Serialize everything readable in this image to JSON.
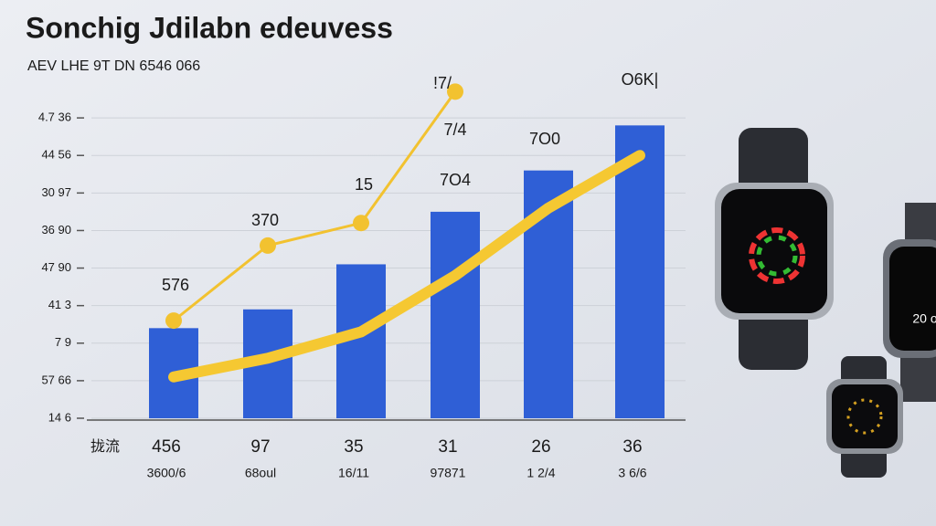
{
  "chart_data": {
    "type": "bar",
    "title": "Sonchig Jdilabn edeuvess",
    "subtitle": "AEV LHE 9T DN 6546 066",
    "x_label": "拢流",
    "categories": [
      "456",
      "97",
      "35",
      "31",
      "26",
      "36"
    ],
    "sublabels": [
      "3600/6",
      "68oul",
      "16/11",
      "97871",
      "1 2/4",
      "3 6/6"
    ],
    "ylim": [
      0,
      9
    ],
    "yticks": [
      {
        "value": 0,
        "label": "14 6"
      },
      {
        "value": 1,
        "label": "57 66"
      },
      {
        "value": 2,
        "label": "7 9"
      },
      {
        "value": 3,
        "label": "41 3"
      },
      {
        "value": 4,
        "label": "47 90"
      },
      {
        "value": 5,
        "label": "36 90"
      },
      {
        "value": 6,
        "label": "30 97"
      },
      {
        "value": 7,
        "label": "44 56"
      },
      {
        "value": 8,
        "label": "4.7 36"
      }
    ],
    "grid": true,
    "series": [
      {
        "type": "bar",
        "color": "#2f5fd6",
        "values": [
          2.4,
          2.9,
          4.1,
          5.5,
          6.6,
          7.8
        ]
      },
      {
        "type": "line",
        "color": "#f5c832",
        "width": 12,
        "values": [
          1.1,
          1.6,
          2.3,
          3.8,
          5.6,
          7.0
        ]
      },
      {
        "type": "line",
        "color": "#f2c230",
        "width": 3,
        "markers": true,
        "values": [
          2.6,
          4.6,
          5.2,
          8.7,
          null,
          null
        ]
      }
    ],
    "annotations": [
      "576",
      "370",
      "15",
      "!7/",
      "7/4",
      "7O4",
      "7O0",
      "O6K|"
    ],
    "device_text": "20 o"
  }
}
